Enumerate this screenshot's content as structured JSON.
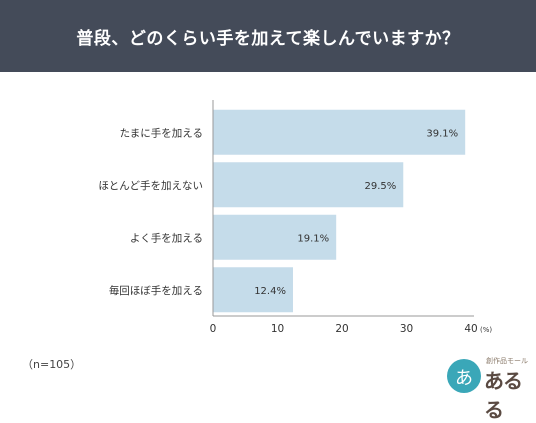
{
  "title": "普段、どのくらい手を加えて楽しんでいますか？",
  "chart_data": {
    "type": "bar",
    "orientation": "horizontal",
    "categories": [
      "たまに手を加える",
      "ほとんど手を加えない",
      "よく手を加える",
      "毎回ほぼ手を加える"
    ],
    "values": [
      39.1,
      29.5,
      19.1,
      12.4
    ],
    "value_labels": [
      "39.1%",
      "29.5%",
      "19.1%",
      "12.4%"
    ],
    "xlim": [
      0,
      40
    ],
    "xticks": [
      "0",
      "10",
      "20",
      "30",
      "40"
    ],
    "unit_label": "(%)",
    "grid": false,
    "bar_color": "#c5dcea"
  },
  "footnote": "（n=105）",
  "logo": {
    "tagline": "創作品モール",
    "name": "あるる",
    "color": "#3aa7b8"
  }
}
